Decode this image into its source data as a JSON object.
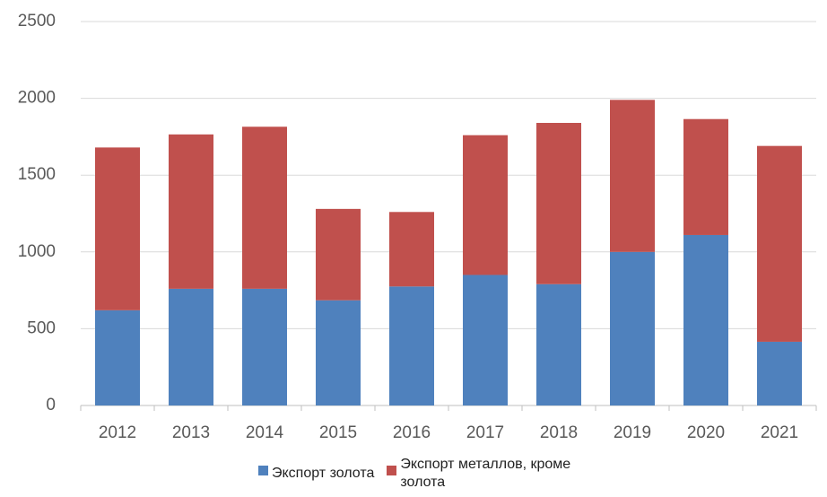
{
  "chart_data": {
    "type": "stacked_bar",
    "categories": [
      "2012",
      "2013",
      "2014",
      "2015",
      "2016",
      "2017",
      "2018",
      "2019",
      "2020",
      "2021"
    ],
    "series": [
      {
        "name": "Экспорт золота",
        "color": "#4f81bd",
        "values": [
          620,
          760,
          760,
          685,
          775,
          850,
          790,
          1000,
          1110,
          415
        ]
      },
      {
        "name": "Экспорт металлов, кроме золота",
        "color": "#c0504d",
        "values": [
          1060,
          1005,
          1055,
          595,
          485,
          910,
          1050,
          990,
          755,
          1275
        ]
      }
    ],
    "ylim": [
      0,
      2500
    ],
    "yticks": [
      0,
      500,
      1000,
      1500,
      2000,
      2500
    ],
    "grid": true,
    "legend": "bottom"
  }
}
